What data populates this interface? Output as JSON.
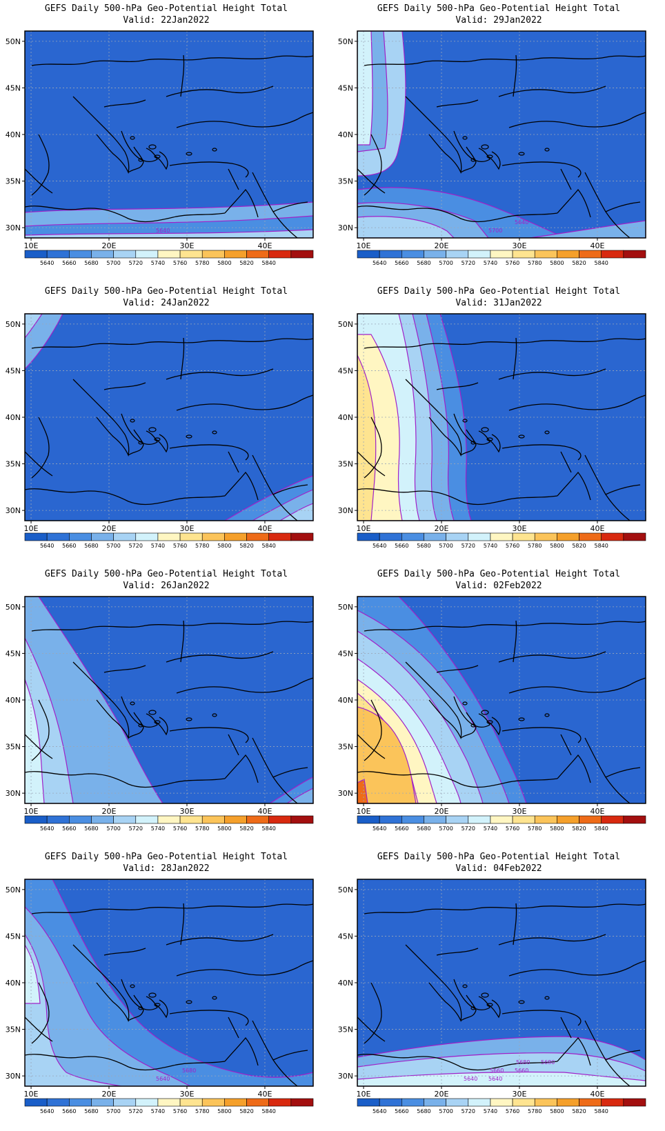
{
  "colors": {
    "bins": [
      "#1a5ec8",
      "#2f72d6",
      "#4a8ee2",
      "#79b1ea",
      "#a8d3f4",
      "#d2f2fb",
      "#fff6c2",
      "#fee490",
      "#fbc45a",
      "#f5a02b",
      "#ee6b18",
      "#d8290f",
      "#a30f0f"
    ],
    "base_field": "#2a66d0",
    "contour": "#a020c8",
    "coast": "#000000",
    "grid": "#9aa6b8"
  },
  "colorbar_labels": [
    "5640",
    "5660",
    "5680",
    "5700",
    "5720",
    "5740",
    "5760",
    "5780",
    "5800",
    "5820",
    "5840"
  ],
  "axis": {
    "lon_labels": [
      "10E",
      "20E",
      "30E",
      "40E"
    ],
    "lat_labels": [
      "50N",
      "45N",
      "40N",
      "35N",
      "30N"
    ]
  },
  "panels": [
    {
      "title": "GEFS Daily 500-hPa Geo-Potential Height Total",
      "valid": "Valid: 22Jan2022",
      "contour_labels": [
        "5640"
      ]
    },
    {
      "title": "GEFS Daily 500-hPa Geo-Potential Height Total",
      "valid": "Valid: 29Jan2022",
      "contour_labels": [
        "5700",
        "5640"
      ]
    },
    {
      "title": "GEFS Daily 500-hPa Geo-Potential Height Total",
      "valid": "Valid: 24Jan2022",
      "contour_labels": []
    },
    {
      "title": "GEFS Daily 500-hPa Geo-Potential Height Total",
      "valid": "Valid: 31Jan2022",
      "contour_labels": []
    },
    {
      "title": "GEFS Daily 500-hPa Geo-Potential Height Total",
      "valid": "Valid: 26Jan2022",
      "contour_labels": []
    },
    {
      "title": "GEFS Daily 500-hPa Geo-Potential Height Total",
      "valid": "Valid: 02Feb2022",
      "contour_labels": []
    },
    {
      "title": "GEFS Daily 500-hPa Geo-Potential Height Total",
      "valid": "Valid: 28Jan2022",
      "contour_labels": [
        "5640",
        "5680"
      ]
    },
    {
      "title": "GEFS Daily 500-hPa Geo-Potential Height Total",
      "valid": "Valid: 04Feb2022",
      "contour_labels": [
        "5640",
        "5660",
        "5680",
        "5640",
        "5660",
        "5680"
      ]
    }
  ]
}
